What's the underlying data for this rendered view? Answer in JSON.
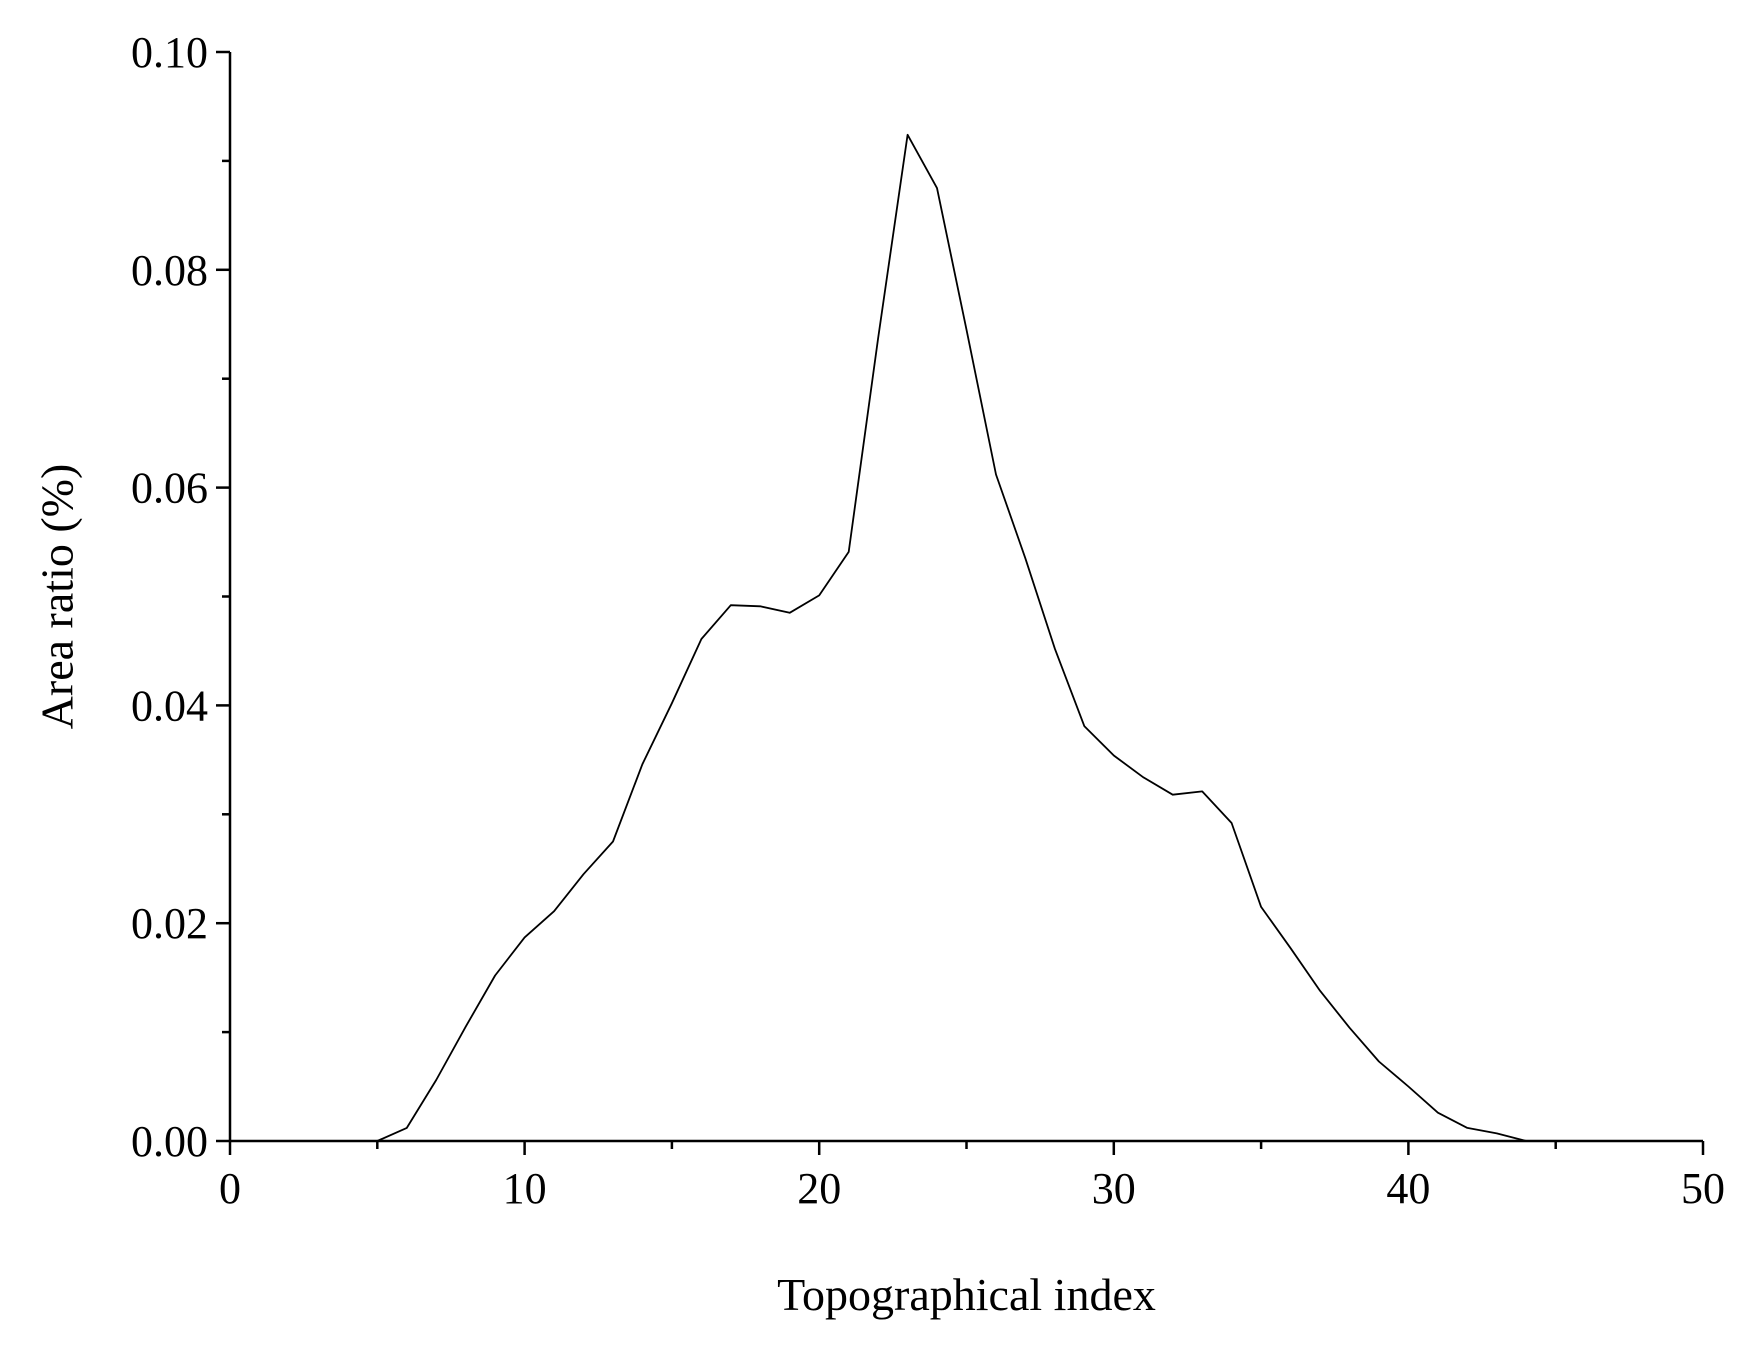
{
  "chart_data": {
    "type": "line",
    "title": "",
    "xlabel": "Topographical index",
    "ylabel": "Area ratio (%)",
    "xlim": [
      0,
      50
    ],
    "ylim": [
      0,
      0.1
    ],
    "x_major_ticks": [
      0,
      10,
      20,
      30,
      40,
      50
    ],
    "x_tick_labels": [
      "0",
      "10",
      "20",
      "30",
      "40",
      "50"
    ],
    "x_minor_ticks": [
      5,
      15,
      25,
      35,
      45
    ],
    "y_major_ticks": [
      0.0,
      0.02,
      0.04,
      0.06,
      0.08,
      0.1
    ],
    "y_tick_labels": [
      "0.00",
      "0.02",
      "0.04",
      "0.06",
      "0.08",
      "0.10"
    ],
    "y_minor_ticks": [
      0.01,
      0.03,
      0.05,
      0.07,
      0.09
    ],
    "grid": false,
    "legend": "none",
    "series": [
      {
        "color": "#000000",
        "x": [
          5,
          6,
          7,
          8,
          9,
          10,
          11,
          12,
          13,
          14,
          15,
          16,
          17,
          18,
          19,
          20,
          21,
          22,
          23,
          24,
          25,
          26,
          27,
          28,
          29,
          30,
          31,
          32,
          33,
          34,
          35,
          36,
          37,
          38,
          39,
          40,
          41,
          42,
          43,
          44
        ],
        "y": [
          0.0,
          0.0012,
          0.0056,
          0.0105,
          0.0152,
          0.0187,
          0.0211,
          0.0245,
          0.0275,
          0.0346,
          0.0402,
          0.0461,
          0.0492,
          0.0491,
          0.0485,
          0.0501,
          0.0541,
          0.0737,
          0.0924,
          0.0875,
          0.0745,
          0.0612,
          0.0535,
          0.0452,
          0.0381,
          0.0354,
          0.0334,
          0.0318,
          0.0321,
          0.0292,
          0.0215,
          0.0177,
          0.0138,
          0.0104,
          0.0073,
          0.005,
          0.0026,
          0.0012,
          0.0007,
          0.0
        ]
      }
    ]
  }
}
